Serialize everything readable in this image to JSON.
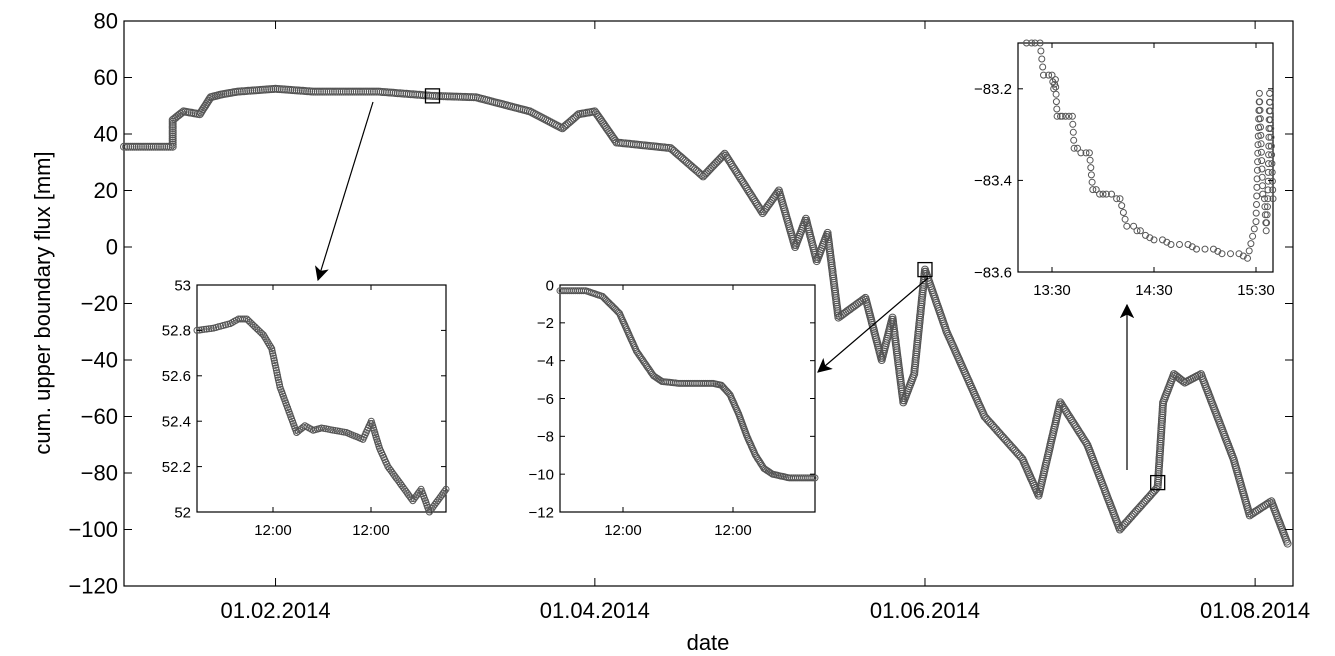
{
  "figure": {
    "marker_color": "#555555"
  },
  "chart_data": [
    {
      "id": "main",
      "type": "scatter",
      "xlabel": "date",
      "ylabel": "cum. upper boundary flux [mm]",
      "x_axis": "dates",
      "xlim": [
        "2014-01-04",
        "2014-08-08"
      ],
      "ylim": [
        -120,
        80
      ],
      "y_ticks": [
        80,
        60,
        40,
        20,
        0,
        -20,
        -40,
        -60,
        -80,
        -100,
        -120
      ],
      "y_tick_labels": [
        "80",
        "60",
        "40",
        "20",
        "0",
        "−20",
        "−40",
        "−60",
        "−80",
        "−100",
        "−120"
      ],
      "x_ticks": [
        "2014-02-01",
        "2014-04-01",
        "2014-06-01",
        "2014-08-01"
      ],
      "x_tick_labels": [
        "01.02.2014",
        "01.04.2014",
        "01.06.2014",
        "01.08.2014"
      ],
      "grid": false,
      "zoom_boxes": [
        {
          "x": "2014-03-02",
          "y": 53.5
        },
        {
          "x": "2014-06-01",
          "y": -8
        },
        {
          "x": "2014-07-14",
          "y": -83.4
        }
      ],
      "series": [
        {
          "x": [
            "2014-01-04",
            "2014-01-13",
            "2014-01-13",
            "2014-01-15",
            "2014-01-18",
            "2014-01-20",
            "2014-01-22",
            "2014-01-25",
            "2014-02-01",
            "2014-02-08",
            "2014-02-20",
            "2014-03-02",
            "2014-03-10",
            "2014-03-20",
            "2014-03-26",
            "2014-03-29",
            "2014-04-01",
            "2014-04-05",
            "2014-04-15",
            "2014-04-21",
            "2014-04-25",
            "2014-05-02",
            "2014-05-05",
            "2014-05-08",
            "2014-05-10",
            "2014-05-12",
            "2014-05-14",
            "2014-05-16",
            "2014-05-21",
            "2014-05-24",
            "2014-05-26",
            "2014-05-28",
            "2014-05-30",
            "2014-06-01",
            "2014-06-05",
            "2014-06-12",
            "2014-06-19",
            "2014-06-22",
            "2014-06-26",
            "2014-07-01",
            "2014-07-03",
            "2014-07-07",
            "2014-07-14",
            "2014-07-15",
            "2014-07-17",
            "2014-07-19",
            "2014-07-22",
            "2014-07-25",
            "2014-07-28",
            "2014-07-31",
            "2014-08-04",
            "2014-08-07"
          ],
          "y": [
            35.5,
            35.5,
            45,
            48,
            47,
            53,
            54,
            55,
            56,
            55,
            55,
            53.5,
            53,
            48,
            42,
            47,
            48,
            37,
            35,
            25,
            33,
            12,
            20,
            0,
            10,
            -5,
            5,
            -25,
            -18,
            -40,
            -25,
            -55,
            -45,
            -8,
            -30,
            -60,
            -75,
            -88,
            -55,
            -70,
            -80,
            -100,
            -85,
            -55,
            -45,
            -48,
            -45,
            -60,
            -75,
            -95,
            -90,
            -105
          ]
        }
      ]
    },
    {
      "id": "inset-1",
      "type": "scatter",
      "xlim": [
        0,
        30
      ],
      "ylim": [
        52,
        53
      ],
      "y_ticks": [
        53,
        52.8,
        52.6,
        52.4,
        52.2,
        52
      ],
      "y_tick_labels": [
        "53",
        "52.8",
        "52.6",
        "52.4",
        "52.2",
        "52"
      ],
      "x_tick_labels": [
        "12:00",
        "12:00"
      ],
      "series": [
        {
          "x": [
            0,
            2,
            4,
            5,
            6,
            8,
            9,
            10,
            11,
            12,
            13,
            14,
            15,
            18,
            20,
            21,
            22,
            23,
            24,
            25,
            26,
            27,
            28,
            30
          ],
          "y": [
            52.8,
            52.81,
            52.83,
            52.85,
            52.85,
            52.78,
            52.72,
            52.55,
            52.45,
            52.35,
            52.38,
            52.36,
            52.37,
            52.35,
            52.32,
            52.4,
            52.28,
            52.2,
            52.15,
            52.1,
            52.05,
            52.1,
            52.0,
            52.1
          ]
        }
      ]
    },
    {
      "id": "inset-2",
      "type": "scatter",
      "xlim": [
        0,
        30
      ],
      "ylim": [
        -12,
        0
      ],
      "y_ticks": [
        0,
        -2,
        -4,
        -6,
        -8,
        -10,
        -12
      ],
      "y_tick_labels": [
        "0",
        "−2",
        "−4",
        "−6",
        "−8",
        "−10",
        "−12"
      ],
      "x_tick_labels": [
        "12:00",
        "12:00"
      ],
      "series": [
        {
          "x": [
            0,
            3,
            5,
            7,
            9,
            11,
            12,
            14,
            16,
            18,
            19,
            20,
            21,
            22,
            23,
            24,
            25,
            26,
            27,
            30
          ],
          "y": [
            -0.3,
            -0.3,
            -0.6,
            -1.5,
            -3.5,
            -4.8,
            -5.1,
            -5.2,
            -5.2,
            -5.2,
            -5.3,
            -5.8,
            -6.8,
            -8.0,
            -9.0,
            -9.7,
            -10.0,
            -10.1,
            -10.2,
            -10.2
          ]
        }
      ]
    },
    {
      "id": "inset-3",
      "type": "scatter",
      "xlim": [
        0,
        150
      ],
      "ylim": [
        -83.6,
        -83.1
      ],
      "y_ticks": [
        -83.2,
        -83.4,
        -83.6
      ],
      "y_tick_labels": [
        "−83.2",
        "−83.4",
        "−83.6"
      ],
      "x_ticks": [
        20,
        80,
        140
      ],
      "x_tick_labels": [
        "13:30",
        "14:30",
        "15:30"
      ],
      "series": [
        {
          "x": [
            5,
            8,
            10,
            13,
            15,
            18,
            20,
            21,
            22,
            23,
            25,
            26,
            28,
            30,
            32,
            33,
            35,
            37,
            40,
            42,
            44,
            46,
            48,
            50,
            52,
            55,
            58,
            60,
            64,
            68,
            70,
            72,
            75,
            80,
            85,
            90,
            95,
            100,
            105,
            110,
            115,
            120,
            125,
            130,
            135,
            140,
            142,
            144,
            145,
            146,
            147,
            148,
            150
          ],
          "y": [
            -83.1,
            -83.1,
            -83.1,
            -83.1,
            -83.17,
            -83.17,
            -83.17,
            -83.2,
            -83.18,
            -83.26,
            -83.26,
            -83.26,
            -83.26,
            -83.26,
            -83.26,
            -83.33,
            -83.33,
            -83.34,
            -83.34,
            -83.34,
            -83.42,
            -83.42,
            -83.43,
            -83.43,
            -83.43,
            -83.43,
            -83.44,
            -83.44,
            -83.5,
            -83.5,
            -83.51,
            -83.51,
            -83.52,
            -83.53,
            -83.53,
            -83.54,
            -83.54,
            -83.54,
            -83.55,
            -83.55,
            -83.55,
            -83.56,
            -83.56,
            -83.56,
            -83.57,
            -83.49,
            -83.21,
            -83.43,
            -83.44,
            -83.51,
            -83.44,
            -83.21,
            -83.44
          ]
        }
      ]
    }
  ]
}
